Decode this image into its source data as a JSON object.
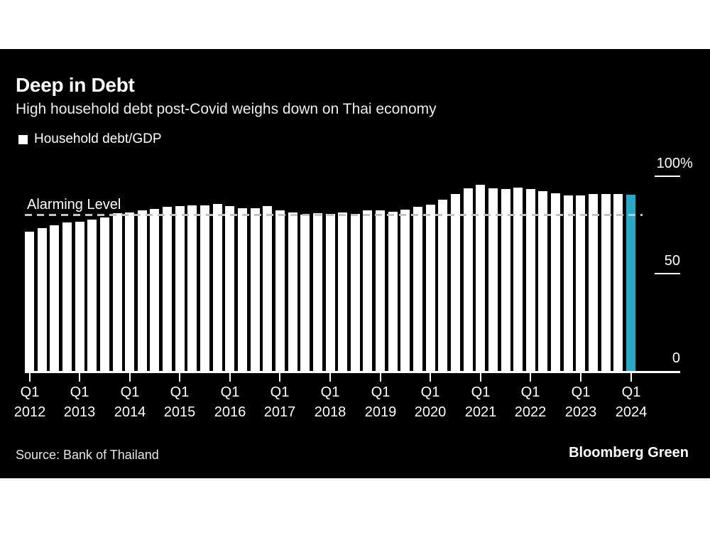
{
  "header": {
    "title": "Deep in Debt",
    "subtitle": "High household debt post-Covid weighs down on Thai economy"
  },
  "legend": {
    "label": "Household debt/GDP",
    "swatch_color": "#ffffff"
  },
  "colors": {
    "card_background": "#000000",
    "page_background": "#ffffff",
    "bar": "#ffffff",
    "highlight_bar": "#29a8c5",
    "dashed_line": "#c4c4c4",
    "text": "#ffffff"
  },
  "chart_data": {
    "type": "bar",
    "title": "Deep in Debt",
    "subtitle": "High household debt post-Covid weighs down on Thai economy",
    "series_name": "Household debt/GDP",
    "unit": "% of GDP",
    "ylim": [
      0,
      100
    ],
    "grid": false,
    "legend_position": "top-left",
    "x": [
      "Q1 2012",
      "Q2 2012",
      "Q3 2012",
      "Q4 2012",
      "Q1 2013",
      "Q2 2013",
      "Q3 2013",
      "Q4 2013",
      "Q1 2014",
      "Q2 2014",
      "Q3 2014",
      "Q4 2014",
      "Q1 2015",
      "Q2 2015",
      "Q3 2015",
      "Q4 2015",
      "Q1 2016",
      "Q2 2016",
      "Q3 2016",
      "Q4 2016",
      "Q1 2017",
      "Q2 2017",
      "Q3 2017",
      "Q4 2017",
      "Q1 2018",
      "Q2 2018",
      "Q3 2018",
      "Q4 2018",
      "Q1 2019",
      "Q2 2019",
      "Q3 2019",
      "Q4 2019",
      "Q1 2020",
      "Q2 2020",
      "Q3 2020",
      "Q4 2020",
      "Q1 2021",
      "Q2 2021",
      "Q3 2021",
      "Q4 2021",
      "Q1 2022",
      "Q2 2022",
      "Q3 2022",
      "Q4 2022",
      "Q1 2023",
      "Q2 2023",
      "Q3 2023",
      "Q4 2023",
      "Q1 2024"
    ],
    "values": [
      71.7,
      73.5,
      75.0,
      76.3,
      76.6,
      77.8,
      78.8,
      80.9,
      81.5,
      82.6,
      83.3,
      84.4,
      84.5,
      85.1,
      85.0,
      85.7,
      84.8,
      83.5,
      83.5,
      84.5,
      82.6,
      81.5,
      80.3,
      81.2,
      80.5,
      81.5,
      80.8,
      82.6,
      82.6,
      81.9,
      82.9,
      84.4,
      85.5,
      88.0,
      90.7,
      93.8,
      95.5,
      93.9,
      93.5,
      94.2,
      93.5,
      92.4,
      91.3,
      90.3,
      90.2,
      90.8,
      91.0,
      91.0,
      90.6
    ],
    "highlight_last": true,
    "x_ticks": [
      {
        "q": "Q1",
        "year": "2012"
      },
      {
        "q": "Q1",
        "year": "2013"
      },
      {
        "q": "Q1",
        "year": "2014"
      },
      {
        "q": "Q1",
        "year": "2015"
      },
      {
        "q": "Q1",
        "year": "2016"
      },
      {
        "q": "Q1",
        "year": "2017"
      },
      {
        "q": "Q1",
        "year": "2018"
      },
      {
        "q": "Q1",
        "year": "2019"
      },
      {
        "q": "Q1",
        "year": "2020"
      },
      {
        "q": "Q1",
        "year": "2021"
      },
      {
        "q": "Q1",
        "year": "2022"
      },
      {
        "q": "Q1",
        "year": "2023"
      },
      {
        "q": "Q1",
        "year": "2024"
      }
    ],
    "y_ticks": [
      {
        "value": 100,
        "label": "100",
        "suffix": "%",
        "tick": true
      },
      {
        "value": 50,
        "label": "50",
        "suffix": "",
        "tick": true
      },
      {
        "value": 0,
        "label": "0",
        "suffix": "",
        "tick": false
      }
    ],
    "reference_line": {
      "label": "Alarming Level",
      "value": 80
    }
  },
  "footer": {
    "source": "Source: Bank of Thailand",
    "brand": "Bloomberg Green"
  }
}
